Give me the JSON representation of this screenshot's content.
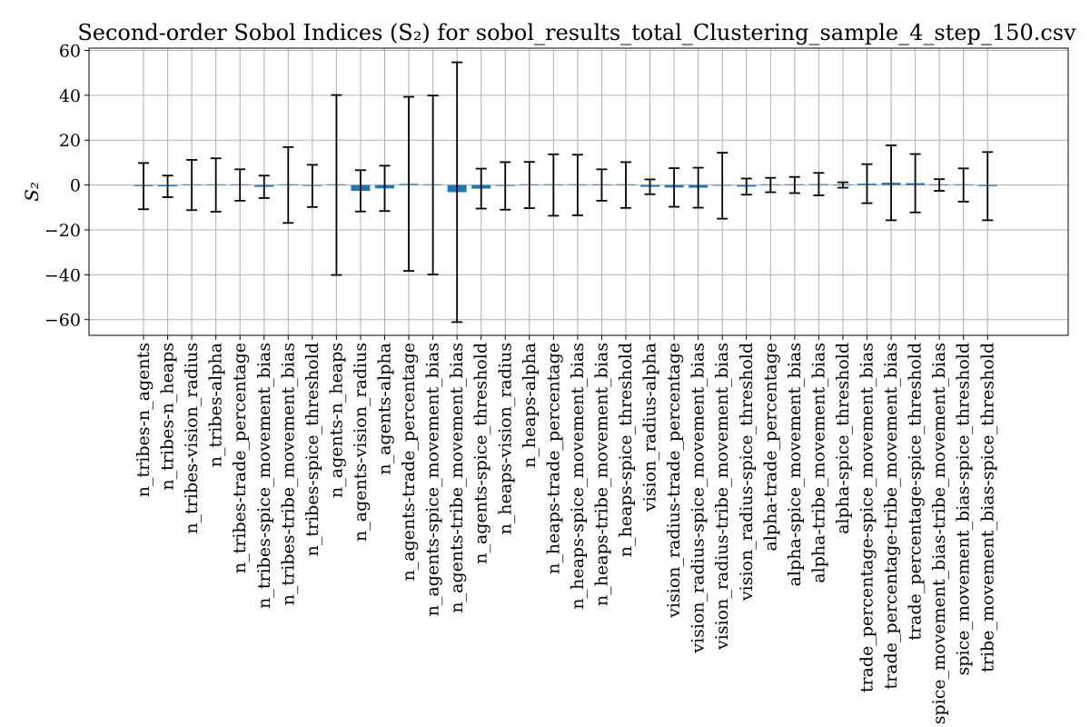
{
  "chart_data": {
    "type": "bar",
    "title": "Second-order Sobol Indices (S₂) for sobol_results_total_Clustering_sample_4_step_150.csv",
    "xlabel": "",
    "ylabel": "S₂",
    "ylim": [
      -67,
      61
    ],
    "yticks": [
      60,
      40,
      20,
      0,
      -20,
      -40,
      -60
    ],
    "ytick_labels": [
      "60",
      "40",
      "20",
      "0",
      "−20",
      "−40",
      "−60"
    ],
    "grid": true,
    "bar_color": "#1f77b4",
    "categories": [
      "n_tribes-n_agents",
      "n_tribes-n_heaps",
      "n_tribes-vision_radius",
      "n_tribes-alpha",
      "n_tribes-trade_percentage",
      "n_tribes-spice_movement_bias",
      "n_tribes-tribe_movement_bias",
      "n_tribes-spice_threshold",
      "n_agents-n_heaps",
      "n_agents-vision_radius",
      "n_agents-alpha",
      "n_agents-trade_percentage",
      "n_agents-spice_movement_bias",
      "n_agents-tribe_movement_bias",
      "n_agents-spice_threshold",
      "n_heaps-vision_radius",
      "n_heaps-alpha",
      "n_heaps-trade_percentage",
      "n_heaps-spice_movement_bias",
      "n_heaps-tribe_movement_bias",
      "n_heaps-spice_threshold",
      "vision_radius-alpha",
      "vision_radius-trade_percentage",
      "vision_radius-spice_movement_bias",
      "vision_radius-tribe_movement_bias",
      "vision_radius-spice_threshold",
      "alpha-trade_percentage",
      "alpha-spice_movement_bias",
      "alpha-tribe_movement_bias",
      "alpha-spice_threshold",
      "trade_percentage-spice_movement_bias",
      "trade_percentage-tribe_movement_bias",
      "trade_percentage-spice_threshold",
      "spice_movement_bias-tribe_movement_bias",
      "spice_movement_bias-spice_threshold",
      "tribe_movement_bias-spice_threshold"
    ],
    "values": [
      -0.5,
      -0.6,
      0.0,
      0.0,
      0.0,
      -0.8,
      0.0,
      -0.4,
      0.0,
      -2.6,
      -1.5,
      0.5,
      0.0,
      -3.2,
      -1.6,
      -0.4,
      0.0,
      0.0,
      0.0,
      0.0,
      0.0,
      -0.8,
      -1.1,
      -1.2,
      -0.3,
      -0.7,
      0.0,
      0.0,
      0.4,
      0.0,
      0.6,
      1.0,
      0.8,
      0.0,
      0.0,
      -0.5
    ],
    "errors": [
      10.3,
      4.8,
      11.2,
      11.9,
      7.0,
      5.0,
      16.9,
      9.4,
      40.1,
      9.2,
      10.1,
      38.8,
      39.9,
      57.9,
      8.9,
      10.6,
      10.3,
      13.7,
      13.5,
      7.0,
      10.2,
      3.3,
      8.6,
      8.9,
      14.7,
      3.6,
      3.2,
      3.6,
      5.0,
      1.2,
      8.7,
      16.7,
      13.0,
      2.6,
      7.4,
      15.2
    ]
  }
}
